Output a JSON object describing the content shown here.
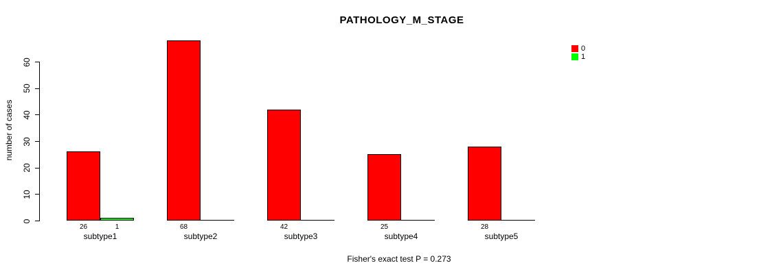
{
  "chart_data": {
    "type": "bar",
    "title": "PATHOLOGY_M_STAGE",
    "ylabel": "number of cases",
    "xlabel": "",
    "caption": "Fisher's exact test P = 0.273",
    "categories": [
      "subtype1",
      "subtype2",
      "subtype3",
      "subtype4",
      "subtype5"
    ],
    "series": [
      {
        "name": "0",
        "color": "#FF0000",
        "values": [
          26,
          68,
          42,
          25,
          28
        ],
        "bar_labels": [
          "26",
          "68",
          "42",
          "25",
          "28"
        ]
      },
      {
        "name": "1",
        "color": "#00FF00",
        "values": [
          1,
          0,
          0,
          0,
          0
        ],
        "bar_labels": [
          "1",
          "",
          "",
          "",
          ""
        ]
      }
    ],
    "y_ticks": [
      0,
      10,
      20,
      30,
      40,
      50,
      60
    ],
    "ylim": [
      0,
      60
    ],
    "grid": false,
    "legend": {
      "position": "top-right",
      "entries": [
        {
          "label": "0",
          "color": "#FF0000"
        },
        {
          "label": "1",
          "color": "#00FF00"
        }
      ]
    },
    "bar_border_color": "#000000",
    "text_color": "#000000",
    "background": "#FFFFFF"
  }
}
